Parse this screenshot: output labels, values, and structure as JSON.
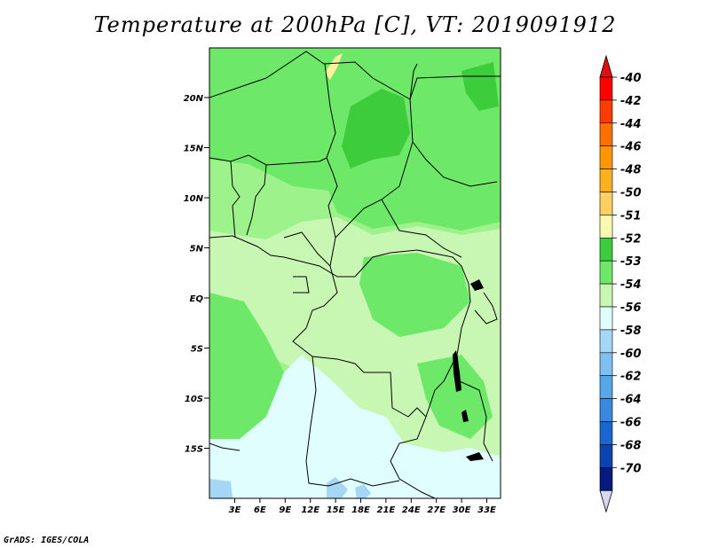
{
  "title": "Temperature at 200hPa [C], VT: 2019091912",
  "credit": "GrADS: IGES/COLA",
  "map": {
    "lat_ticks": [
      "20N",
      "15N",
      "10N",
      "5N",
      "EQ",
      "5S",
      "10S",
      "15S"
    ],
    "lon_ticks": [
      "3E",
      "6E",
      "9E",
      "12E",
      "15E",
      "18E",
      "21E",
      "24E",
      "27E",
      "30E",
      "33E"
    ],
    "region_colors": {
      "very_light_green": "#c8f7b4",
      "light_green": "#9ef28c",
      "green": "#6ee868",
      "dark_green": "#3ccc3c",
      "pale_cyan": "#e0fefe",
      "light_blue": "#a6d6f6",
      "pale_yellow": "#fff0a0"
    }
  },
  "colorbar": {
    "labels": [
      "-40",
      "-42",
      "-44",
      "-46",
      "-48",
      "-50",
      "-51",
      "-52",
      "-53",
      "-54",
      "-56",
      "-58",
      "-60",
      "-62",
      "-64",
      "-66",
      "-68",
      "-70"
    ],
    "colors": [
      "#ff0000",
      "#ff3c00",
      "#ff7000",
      "#ff9600",
      "#ffb020",
      "#ffd060",
      "#fff8b0",
      "#3ccc3c",
      "#6ee868",
      "#c8f7b4",
      "#e0fefe",
      "#a6d6f6",
      "#80c0f0",
      "#58a6ea",
      "#3a88e0",
      "#1a66d0",
      "#0a44b0",
      "#061a80"
    ],
    "top_arrow_color": "#e01010",
    "bottom_arrow_color": "#d8d8ee"
  }
}
